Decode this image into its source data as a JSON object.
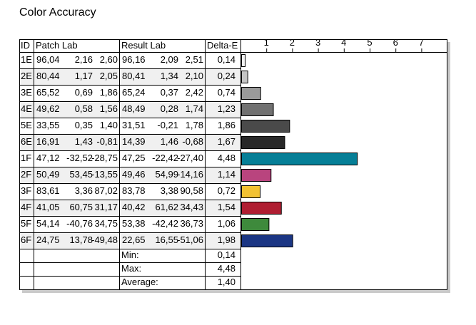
{
  "title": "Color Accuracy",
  "headers": {
    "id": "ID",
    "patch": "Patch Lab",
    "result": "Result Lab",
    "delta": "Delta-E"
  },
  "chart_data": {
    "type": "bar",
    "title": "Color Accuracy",
    "orientation": "horizontal",
    "x_ticks": [
      1,
      2,
      3,
      4,
      5,
      6,
      7
    ],
    "xlim": [
      0,
      7.5
    ],
    "grid": false,
    "rows": [
      {
        "id": "1E",
        "patch": [
          "96,04",
          "2,16",
          "2,60"
        ],
        "result": [
          "96,16",
          "2,09",
          "2,51"
        ],
        "delta_label": "0,14",
        "delta": 0.14,
        "color": "#f3f3f3"
      },
      {
        "id": "2E",
        "patch": [
          "80,44",
          "1,17",
          "2,05"
        ],
        "result": [
          "80,41",
          "1,34",
          "2,10"
        ],
        "delta_label": "0,24",
        "delta": 0.24,
        "color": "#c4c4c4"
      },
      {
        "id": "3E",
        "patch": [
          "65,52",
          "0,69",
          "1,86"
        ],
        "result": [
          "65,24",
          "0,37",
          "2,42"
        ],
        "delta_label": "0,74",
        "delta": 0.74,
        "color": "#9a9a9a"
      },
      {
        "id": "4E",
        "patch": [
          "49,62",
          "0,58",
          "1,56"
        ],
        "result": [
          "48,49",
          "0,28",
          "1,74"
        ],
        "delta_label": "1,23",
        "delta": 1.23,
        "color": "#717171"
      },
      {
        "id": "5E",
        "patch": [
          "33,55",
          "0,35",
          "1,40"
        ],
        "result": [
          "31,51",
          "-0,21",
          "1,78"
        ],
        "delta_label": "1,86",
        "delta": 1.86,
        "color": "#4a4a4a"
      },
      {
        "id": "6E",
        "patch": [
          "16,91",
          "1,43",
          "-0,81"
        ],
        "result": [
          "14,39",
          "1,46",
          "-0,68"
        ],
        "delta_label": "1,67",
        "delta": 1.67,
        "color": "#282828"
      },
      {
        "id": "1F",
        "patch": [
          "47,12",
          "-32,52",
          "-28,75"
        ],
        "result": [
          "47,25",
          "-22,42",
          "-27,40"
        ],
        "delta_label": "4,48",
        "delta": 4.48,
        "color": "#067f97"
      },
      {
        "id": "2F",
        "patch": [
          "50,49",
          "53,45",
          "-13,55"
        ],
        "result": [
          "49,46",
          "54,99",
          "-14,16"
        ],
        "delta_label": "1,14",
        "delta": 1.14,
        "color": "#b9447e"
      },
      {
        "id": "3F",
        "patch": [
          "83,61",
          "3,36",
          "87,02"
        ],
        "result": [
          "83,78",
          "3,38",
          "90,58"
        ],
        "delta_label": "0,72",
        "delta": 0.72,
        "color": "#f2c232"
      },
      {
        "id": "4F",
        "patch": [
          "41,05",
          "60,75",
          "31,17"
        ],
        "result": [
          "40,42",
          "61,62",
          "34,43"
        ],
        "delta_label": "1,54",
        "delta": 1.54,
        "color": "#b01e32"
      },
      {
        "id": "5F",
        "patch": [
          "54,14",
          "-40,76",
          "34,75"
        ],
        "result": [
          "53,38",
          "-42,42",
          "36,73"
        ],
        "delta_label": "1,06",
        "delta": 1.06,
        "color": "#3e8a3c"
      },
      {
        "id": "6F",
        "patch": [
          "24,75",
          "13,78",
          "-49,48"
        ],
        "result": [
          "22,65",
          "16,55",
          "-51,06"
        ],
        "delta_label": "1,98",
        "delta": 1.98,
        "color": "#1b3684"
      }
    ]
  },
  "summary": [
    {
      "label": "Min:",
      "value": "0,14"
    },
    {
      "label": "Max:",
      "value": "4,48"
    },
    {
      "label": "Average:",
      "value": "1,40"
    }
  ]
}
